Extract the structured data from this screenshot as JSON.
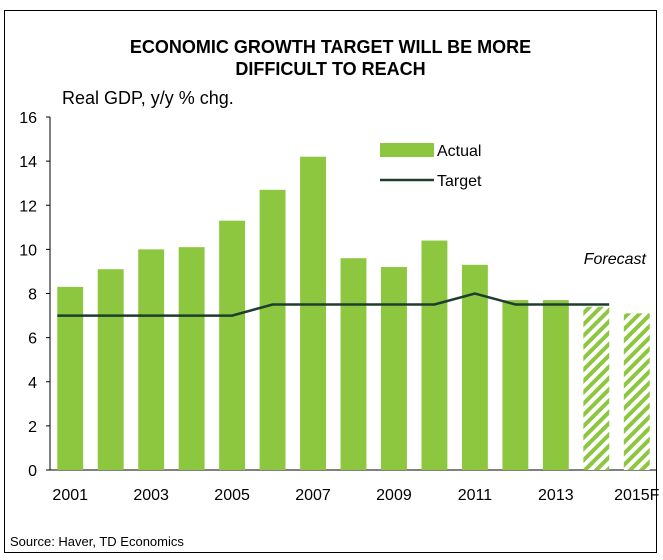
{
  "chart_data": {
    "type": "bar",
    "title_line1": "ECONOMIC GROWTH TARGET WILL BE MORE",
    "title_line2": "DIFFICULT TO REACH",
    "ylabel": "Real GDP, y/y % chg.",
    "ylim": [
      0,
      16
    ],
    "yticks": [
      0,
      2,
      4,
      6,
      8,
      10,
      12,
      14,
      16
    ],
    "categories": [
      "2001",
      "2002",
      "2003",
      "2004",
      "2005",
      "2006",
      "2007",
      "2008",
      "2009",
      "2010",
      "2011",
      "2012",
      "2013",
      "2014",
      "2015F"
    ],
    "xtick_labels": [
      "2001",
      "",
      "2003",
      "",
      "2005",
      "",
      "2007",
      "",
      "2009",
      "",
      "2011",
      "",
      "2013",
      "",
      "2015F"
    ],
    "series": [
      {
        "name": "Actual",
        "kind": "bar",
        "color": "#8dc63f",
        "values": [
          8.3,
          9.1,
          10.0,
          10.1,
          11.3,
          12.7,
          14.2,
          9.6,
          9.2,
          10.4,
          9.3,
          7.7,
          7.7,
          7.4,
          7.1
        ],
        "forecast_from_index": 13
      },
      {
        "name": "Target",
        "kind": "line",
        "color": "#1e3d2f",
        "values": [
          7.0,
          7.0,
          7.0,
          7.0,
          7.0,
          7.5,
          7.5,
          7.5,
          7.5,
          7.5,
          8.0,
          7.5,
          7.5,
          7.5,
          null
        ]
      }
    ],
    "annotation": "Forecast",
    "legend_position": "top-center",
    "grid": false
  },
  "source": "Source: Haver, TD Economics"
}
